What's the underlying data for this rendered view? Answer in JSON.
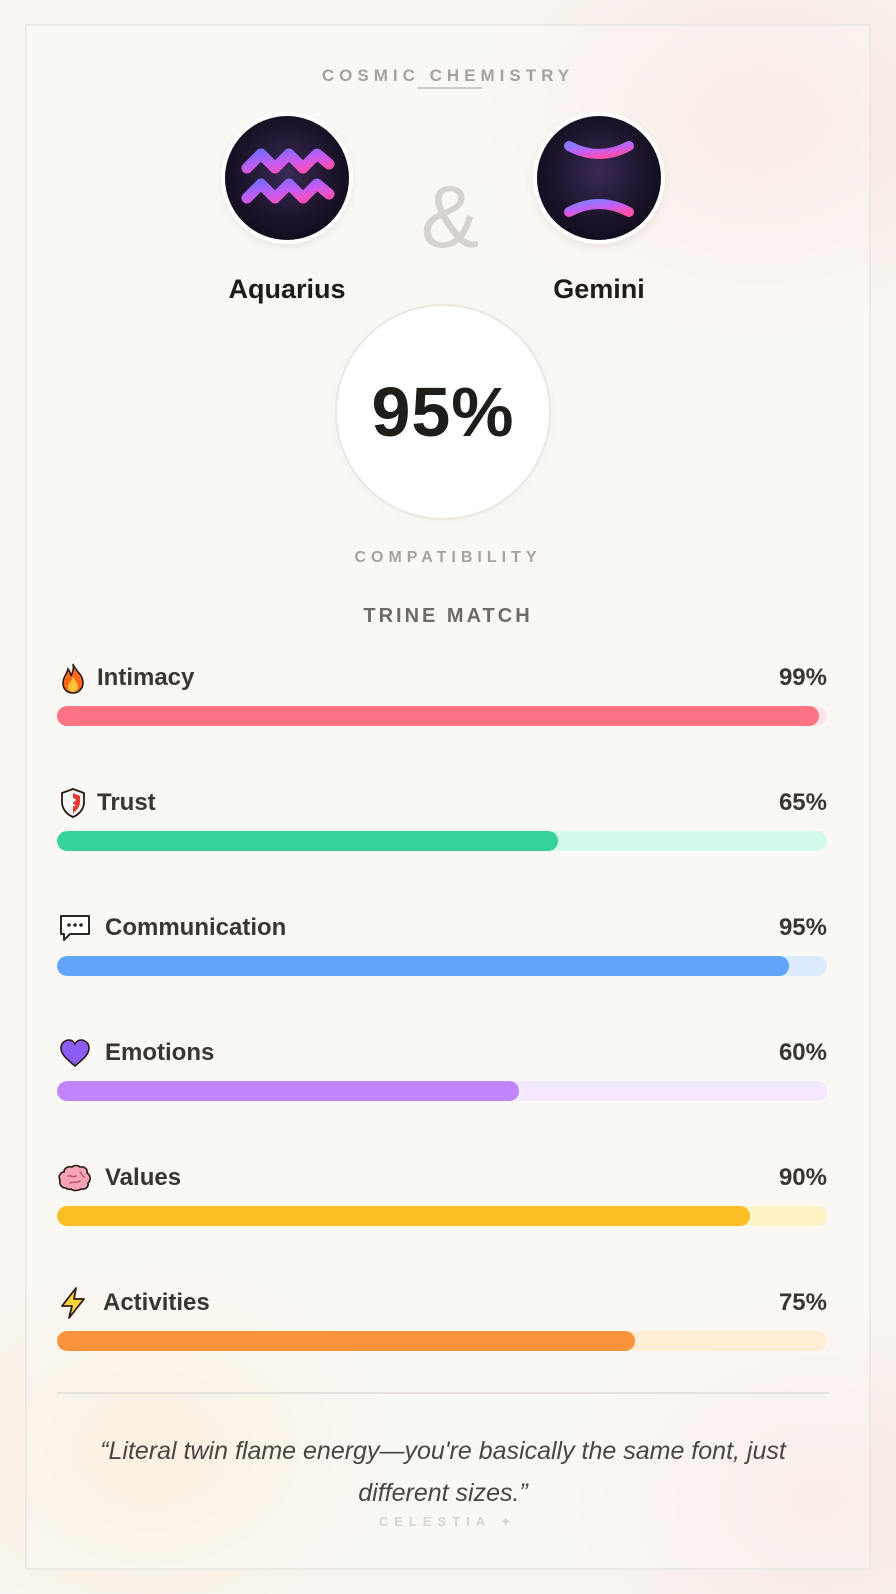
{
  "header": {
    "title": "COSMIC CHEMISTRY"
  },
  "signs": [
    {
      "name": "Aquarius",
      "icon": "aquarius-glyph-icon"
    },
    {
      "name": "Gemini",
      "icon": "gemini-glyph-icon"
    }
  ],
  "ampersand": "&",
  "score": {
    "value": "95%",
    "label": "COMPATIBILITY"
  },
  "match_type": "TRINE MATCH",
  "metrics": [
    {
      "label": "Intimacy",
      "value": "99%",
      "fraction": 0.99,
      "icon": "fire-icon",
      "color": "#fd7385",
      "track": "#ffe4e8"
    },
    {
      "label": "Trust",
      "value": "65%",
      "fraction": 0.65,
      "icon": "shield-icon",
      "color": "#36d399",
      "track": "#d1faea"
    },
    {
      "label": "Communication",
      "value": "95%",
      "fraction": 0.95,
      "icon": "speech-bubble-icon",
      "color": "#60a5fa",
      "track": "#dbeafe"
    },
    {
      "label": "Emotions",
      "value": "60%",
      "fraction": 0.6,
      "icon": "heart-icon",
      "color": "#c084fc",
      "track": "#f3e8ff"
    },
    {
      "label": "Values",
      "value": "90%",
      "fraction": 0.9,
      "icon": "brain-icon",
      "color": "#fbbf24",
      "track": "#fef3c7"
    },
    {
      "label": "Activities",
      "value": "75%",
      "fraction": 0.75,
      "icon": "lightning-icon",
      "color": "#fb923c",
      "track": "#ffedd5"
    }
  ],
  "quote": "“Literal twin flame energy—you're basically the same font, just different sizes.”",
  "brand": "CELESTIA ✦"
}
